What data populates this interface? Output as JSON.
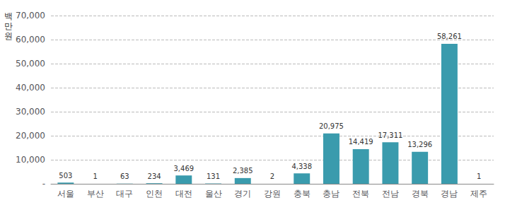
{
  "chart_data": {
    "type": "bar",
    "ylabel": "백\n만\n원",
    "categories": [
      "서울",
      "부산",
      "대구",
      "인천",
      "대전",
      "울산",
      "경기",
      "강원",
      "충북",
      "충남",
      "전북",
      "전남",
      "경북",
      "경남",
      "제주"
    ],
    "values": [
      503,
      1,
      63,
      234,
      3469,
      131,
      2385,
      2,
      4338,
      20975,
      14419,
      17311,
      13296,
      58261,
      1
    ],
    "value_labels": [
      "503",
      "1",
      "63",
      "234",
      "3,469",
      "131",
      "2,385",
      "2",
      "4,338",
      "20,975",
      "14,419",
      "17,311",
      "13,296",
      "58,261",
      "1"
    ],
    "data_labels": true,
    "color": "#3A9BAD",
    "ylim": [
      0,
      70000
    ],
    "yticks": [
      {
        "value": 0,
        "label": "-"
      },
      {
        "value": 10000,
        "label": "10,000"
      },
      {
        "value": 20000,
        "label": "20,000"
      },
      {
        "value": 30000,
        "label": "30,000"
      },
      {
        "value": 40000,
        "label": "40,000"
      },
      {
        "value": 50000,
        "label": "50,000"
      },
      {
        "value": 60000,
        "label": "60,000"
      },
      {
        "value": 70000,
        "label": "70,000"
      }
    ],
    "grid": true
  }
}
